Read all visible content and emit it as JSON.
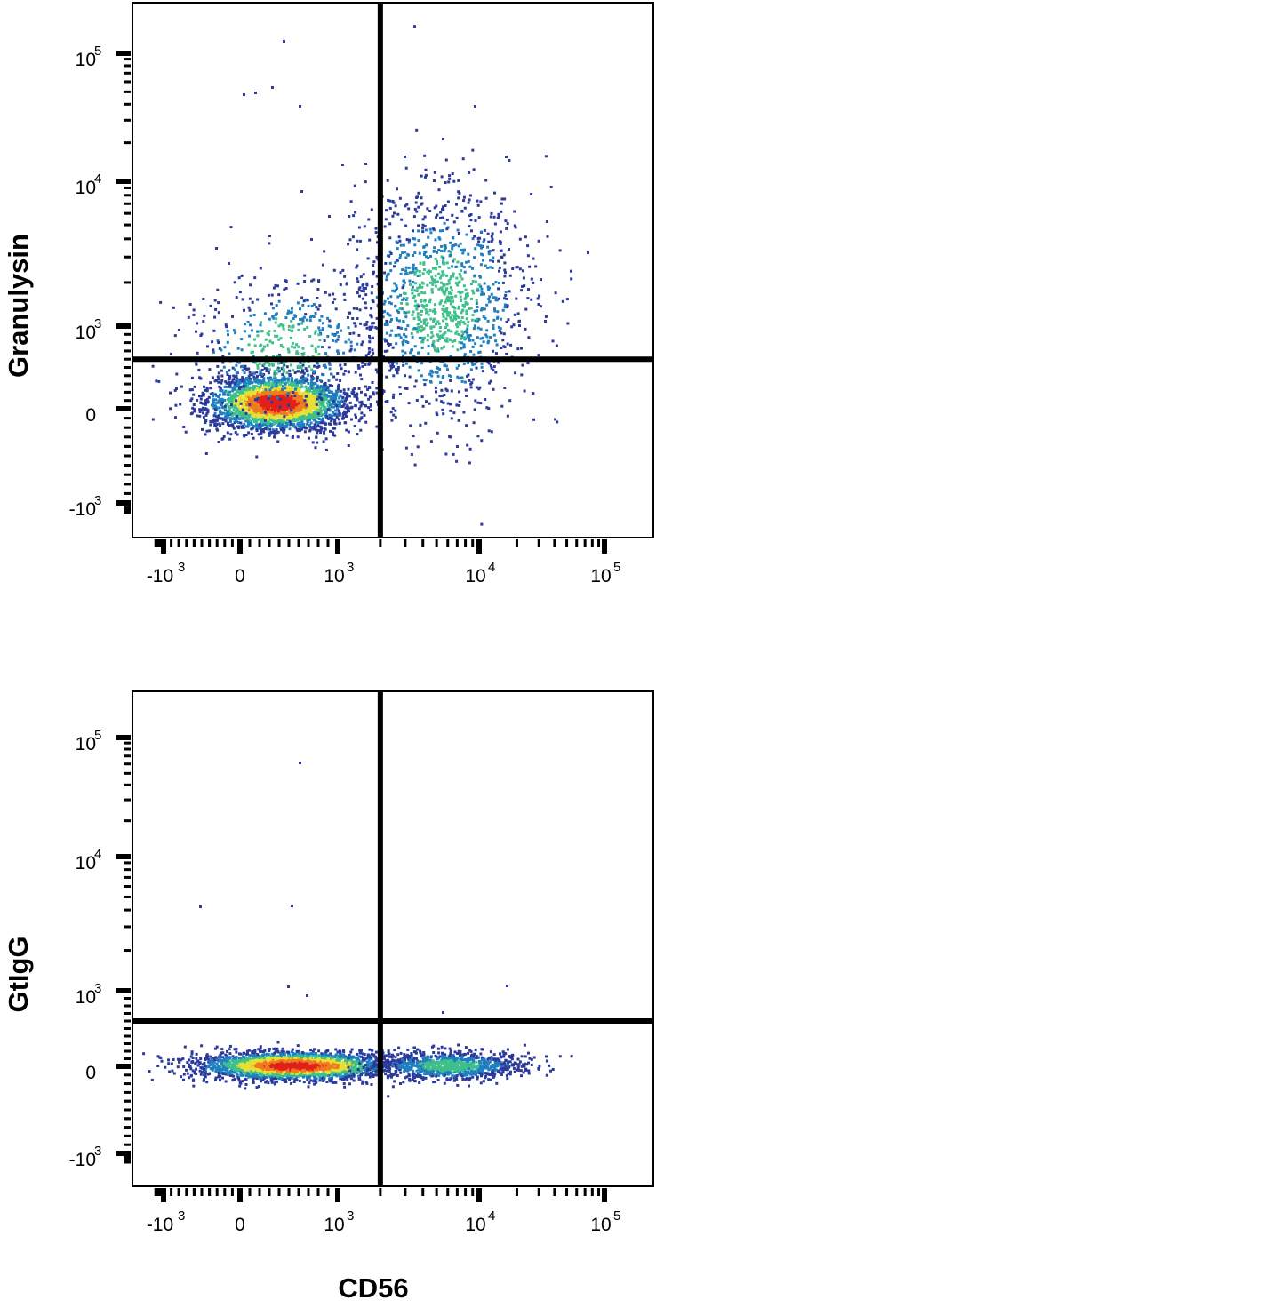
{
  "chart_data": [
    {
      "type": "scatter",
      "subtype": "flow-cytometry density dot plot (pseudocolor)",
      "xlabel": "",
      "ylabel": "Granulysin",
      "x_scale": "biexponential",
      "y_scale": "biexponential",
      "x_ticks": [
        {
          "value": -1000,
          "base": "-10",
          "exp": "3"
        },
        {
          "value": 0,
          "base": "0",
          "exp": ""
        },
        {
          "value": 1000,
          "base": "10",
          "exp": "3"
        },
        {
          "value": 10000,
          "base": "10",
          "exp": "4"
        },
        {
          "value": 100000,
          "base": "10",
          "exp": "5"
        }
      ],
      "y_ticks": [
        {
          "value": -1000,
          "base": "-10",
          "exp": "3"
        },
        {
          "value": 0,
          "base": "0",
          "exp": ""
        },
        {
          "value": 1000,
          "base": "10",
          "exp": "3"
        },
        {
          "value": 10000,
          "base": "10",
          "exp": "4"
        },
        {
          "value": 100000,
          "base": "10",
          "exp": "5"
        }
      ],
      "quadrant_gates": {
        "x": 2000,
        "y": 600
      },
      "populations": [
        {
          "center": [
            200,
            120
          ],
          "density": "high"
        },
        {
          "center": [
            5000,
            1500
          ],
          "density": "low"
        }
      ]
    },
    {
      "type": "scatter",
      "subtype": "flow-cytometry density dot plot (pseudocolor)",
      "xlabel": "CD56",
      "ylabel": "GtIgG",
      "x_scale": "biexponential",
      "y_scale": "biexponential",
      "x_ticks": [
        {
          "value": -1000,
          "base": "-10",
          "exp": "3"
        },
        {
          "value": 0,
          "base": "0",
          "exp": ""
        },
        {
          "value": 1000,
          "base": "10",
          "exp": "3"
        },
        {
          "value": 10000,
          "base": "10",
          "exp": "4"
        },
        {
          "value": 100000,
          "base": "10",
          "exp": "5"
        }
      ],
      "y_ticks": [
        {
          "value": -1000,
          "base": "-10",
          "exp": "3"
        },
        {
          "value": 0,
          "base": "0",
          "exp": ""
        },
        {
          "value": 1000,
          "base": "10",
          "exp": "3"
        },
        {
          "value": 10000,
          "base": "10",
          "exp": "4"
        },
        {
          "value": 100000,
          "base": "10",
          "exp": "5"
        }
      ],
      "quadrant_gates": {
        "x": 2000,
        "y": 600
      },
      "populations": [
        {
          "center": [
            350,
            80
          ],
          "density": "high"
        },
        {
          "center": [
            6000,
            80
          ],
          "density": "medium"
        }
      ]
    }
  ],
  "colors": {
    "low": "#2b3a9b",
    "mid_low": "#1f7fc0",
    "mid": "#3fbf8a",
    "mid_high": "#e6e033",
    "high": "#f07b1f",
    "peak": "#e0201b",
    "gate": "#000000",
    "axis": "#000000"
  }
}
